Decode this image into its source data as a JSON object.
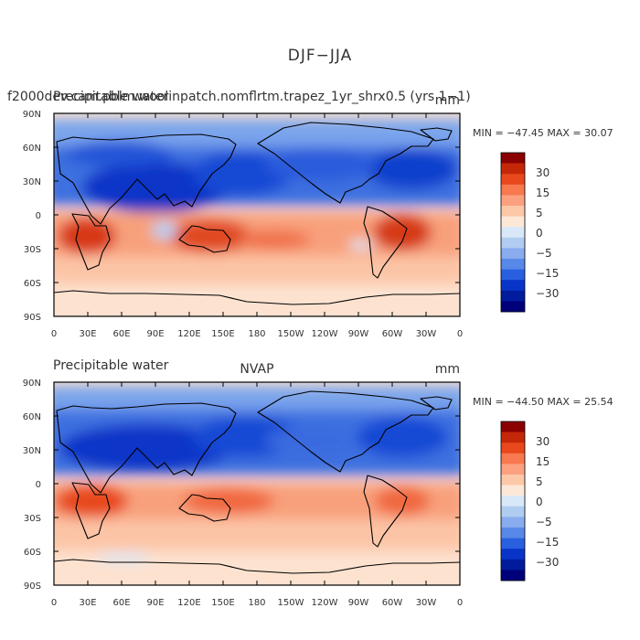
{
  "figure": {
    "title": "DJF−JJA",
    "panels": [
      {
        "case_label": "f2000dev.cam.pblm.woolinpatch.nomflrtm.trapez_1yr_shrx0.5 (yrs 1−1)",
        "variable_label": "Precipitable water",
        "units": "mm",
        "source_label": "",
        "extrema_text": "MIN = −47.45 MAX =   30.07",
        "min": -47.45,
        "max": 30.07
      },
      {
        "case_label": "",
        "variable_label": "Precipitable water",
        "units": "mm",
        "source_label": "NVAP",
        "extrema_text": "MIN = −44.50 MAX =   25.54",
        "min": -44.5,
        "max": 25.54
      }
    ],
    "longitude_ticks": [
      "0",
      "30E",
      "60E",
      "90E",
      "120E",
      "150E",
      "180",
      "150W",
      "120W",
      "90W",
      "60W",
      "30W",
      "0"
    ],
    "latitude_ticks": [
      "90N",
      "60N",
      "30N",
      "0",
      "30S",
      "60S",
      "90S"
    ],
    "colorbar": {
      "labels": [
        "30",
        "15",
        "5",
        "0",
        "−5",
        "−15",
        "−30"
      ],
      "colors": [
        "#8b0000",
        "#c42808",
        "#e8481c",
        "#f87850",
        "#fca080",
        "#fdc8a8",
        "#fde8d8",
        "#d8e8f8",
        "#b0ccf0",
        "#88acee",
        "#5888e8",
        "#2860e0",
        "#0834c8",
        "#001c9c",
        "#00007a"
      ]
    },
    "colors": {
      "coastline": "#000000",
      "positive_strong": "#d83818",
      "negative_strong": "#0828c8"
    }
  }
}
